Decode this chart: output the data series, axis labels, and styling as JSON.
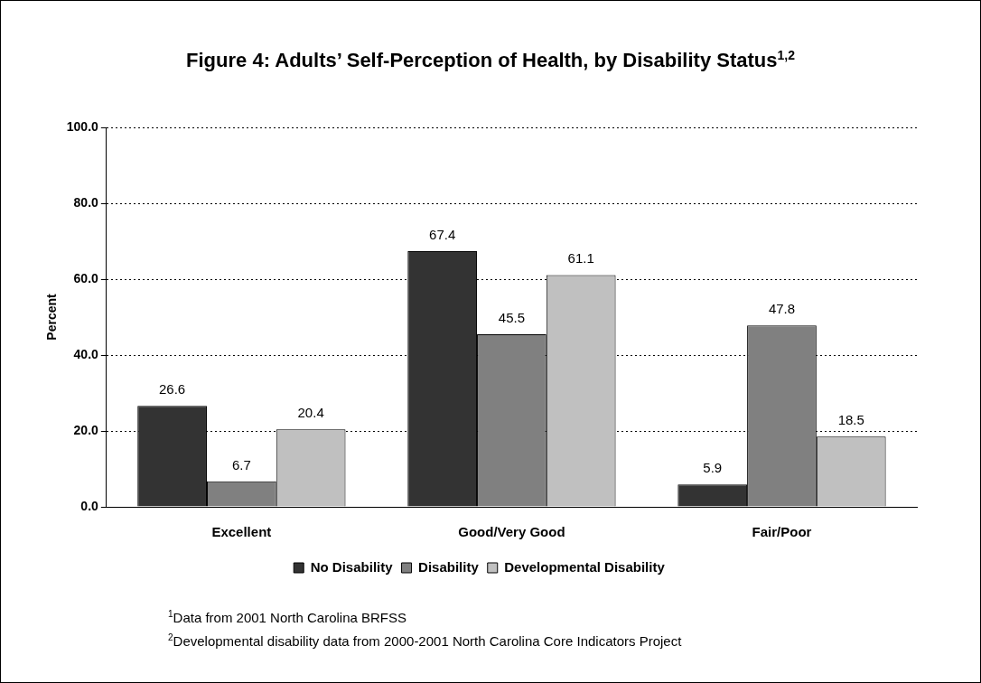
{
  "chart_data": {
    "type": "bar",
    "title": "Figure 4: Adults’ Self-Perception of Health, by Disability Status$^{1,2}$",
    "ylabel": "Percent",
    "categories": [
      "Excellent",
      "Good/Very Good",
      "Fair/Poor"
    ],
    "series": [
      {
        "name": "No Disability",
        "color": "#333333",
        "values": [
          26.6,
          67.4,
          5.9
        ]
      },
      {
        "name": "Disability",
        "color": "#808080",
        "values": [
          6.7,
          45.5,
          47.8
        ]
      },
      {
        "name": "Developmental Disability",
        "color": "#c0c0c0",
        "values": [
          20.4,
          61.1,
          18.5
        ]
      }
    ],
    "ylim": [
      0,
      100
    ],
    "yticks": [
      {
        "value": 0,
        "label": "0.0"
      },
      {
        "value": 20,
        "label": "20.0"
      },
      {
        "value": 40,
        "label": "40.0"
      },
      {
        "value": 60,
        "label": "60.0"
      },
      {
        "value": 80,
        "label": "80.0"
      },
      {
        "value": 100,
        "label": "100.0"
      }
    ],
    "grid": "y",
    "legend": "bottom",
    "data_labels": true,
    "annotations": [
      "$^{1}$Data from 2001 North Carolina BRFSS",
      "$^{2}$Developmental disability data from 2000-2001 North Carolina Core Indicators Project"
    ]
  }
}
